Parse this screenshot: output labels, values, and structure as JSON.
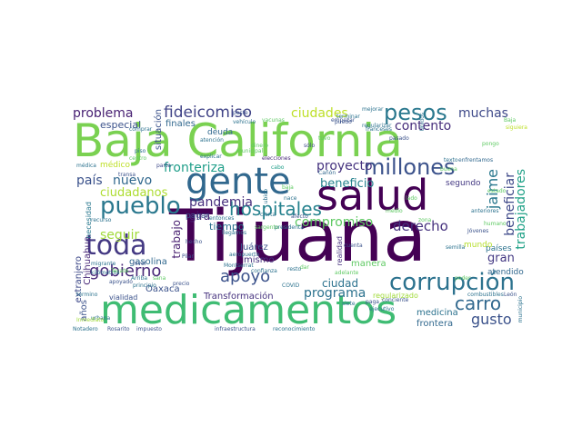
{
  "palette": {
    "dark_purple": "#440154",
    "indigo": "#3b528b",
    "teal": "#21908c",
    "green": "#5ec962",
    "lime": "#a0da39",
    "yellow": "#fde725"
  },
  "words": [
    {
      "text": "Tijuana",
      "color": "#440154"
    },
    {
      "text": "Baja California",
      "color": "#7ad151"
    },
    {
      "text": "medicamentos",
      "color": "#3fbc73"
    },
    {
      "text": "salud",
      "color": "#440154"
    },
    {
      "text": "gente",
      "color": "#31688e"
    },
    {
      "text": "corrupción",
      "color": "#2c728e"
    },
    {
      "text": "pesos",
      "color": "#2a788e"
    },
    {
      "text": "millones",
      "color": "#3b528b"
    },
    {
      "text": "toda",
      "color": "#443983"
    },
    {
      "text": "pueblo",
      "color": "#2a788e"
    },
    {
      "text": "hospitales",
      "color": "#26828e"
    },
    {
      "text": "fideicomiso",
      "color": "#414487"
    },
    {
      "text": "gobierno",
      "color": "#482878"
    },
    {
      "text": "apoyo",
      "color": "#3b528b"
    },
    {
      "text": "carro",
      "color": "#31688e"
    },
    {
      "text": "problema",
      "color": "#482173"
    },
    {
      "text": "ciudades",
      "color": "#bddf26"
    },
    {
      "text": "muchas",
      "color": "#3e4989"
    },
    {
      "text": "contento",
      "color": "#472d7b"
    },
    {
      "text": "fronteriza",
      "color": "#1f9e89"
    },
    {
      "text": "proyecto",
      "color": "#46337f"
    },
    {
      "text": "país",
      "color": "#3b528b"
    },
    {
      "text": "nuevo",
      "color": "#31688e"
    },
    {
      "text": "beneficio",
      "color": "#26828e"
    },
    {
      "text": "ciudadanos",
      "color": "#addc30"
    },
    {
      "text": "pandemia",
      "color": "#472f7d"
    },
    {
      "text": "derecho",
      "color": "#46327e"
    },
    {
      "text": "gira",
      "color": "#482475"
    },
    {
      "text": "compromiso",
      "color": "#5ec962"
    },
    {
      "text": "seguir",
      "color": "#a0da39"
    },
    {
      "text": "programa",
      "color": "#2c728e"
    },
    {
      "text": "gusto",
      "color": "#3b528b"
    },
    {
      "text": "jaime",
      "color": "#2a788e"
    },
    {
      "text": "beneficiar",
      "color": "#3e4989"
    },
    {
      "text": "trabajadores",
      "color": "#1fa187"
    },
    {
      "text": "gran",
      "color": "#443983"
    },
    {
      "text": "especial",
      "color": "#3b528b"
    },
    {
      "text": "finales",
      "color": "#31688e"
    },
    {
      "text": "situación",
      "color": "#3b528b"
    },
    {
      "text": "trabajo",
      "color": "#481f70"
    },
    {
      "text": "ciudad",
      "color": "#2c728e"
    },
    {
      "text": "mismo",
      "color": "#46327e"
    },
    {
      "text": "Juárez",
      "color": "#3b528b"
    },
    {
      "text": "tiempo",
      "color": "#2c728e"
    },
    {
      "text": "Transformación",
      "color": "#46327e"
    },
    {
      "text": "gasolina",
      "color": "#31688e"
    },
    {
      "text": "Oaxaca",
      "color": "#3b528b"
    },
    {
      "text": "Chihuahua",
      "color": "#482878"
    },
    {
      "text": "extranjero",
      "color": "#3e4989"
    },
    {
      "text": "necesidad",
      "color": "#2a788e"
    },
    {
      "text": "años",
      "color": "#3b528b"
    },
    {
      "text": "realidad",
      "color": "#46327e"
    },
    {
      "text": "países",
      "color": "#2c728e"
    },
    {
      "text": "atendido",
      "color": "#31688e"
    },
    {
      "text": "mundo",
      "color": "#b5de2b"
    },
    {
      "text": "medicina",
      "color": "#2c728e"
    },
    {
      "text": "frontera",
      "color": "#31688e"
    },
    {
      "text": "manera",
      "color": "#5ec962"
    },
    {
      "text": "deuda",
      "color": "#31688e"
    },
    {
      "text": "segundo",
      "color": "#443983"
    },
    {
      "text": "pagar",
      "color": "#3b528b"
    },
    {
      "text": "médico",
      "color": "#bddf26"
    },
    {
      "text": "regularizado",
      "color": "#a0da39"
    },
    {
      "text": "vialidad",
      "color": "#3b528b"
    },
    {
      "text": "médica",
      "color": "#2c728e"
    },
    {
      "text": "parte",
      "color": "#3e4989"
    },
    {
      "text": "piso",
      "color": "#2c728e"
    },
    {
      "text": "comprar",
      "color": "#2c728e"
    },
    {
      "text": "mejorar",
      "color": "#2c728e"
    },
    {
      "text": "atención",
      "color": "#2c728e"
    },
    {
      "text": "peste",
      "color": "#3b528b"
    },
    {
      "text": "vacunas",
      "color": "#5ec962"
    },
    {
      "text": "empezar",
      "color": "#3b528b"
    },
    {
      "text": "elecciones",
      "color": "#482878"
    },
    {
      "text": "cabo",
      "color": "#1f9e89"
    },
    {
      "text": "Cañón",
      "color": "#31688e"
    },
    {
      "text": "explicar",
      "color": "#2c728e"
    },
    {
      "text": "regularizar",
      "color": "#2c728e"
    },
    {
      "text": "sólo",
      "color": "#3e4989"
    },
    {
      "text": "pasado",
      "color": "#3b528b"
    },
    {
      "text": "siguiera",
      "color": "#bddf26"
    },
    {
      "text": "Baja",
      "color": "#5ec962"
    },
    {
      "text": "enfrentamos",
      "color": "#31688e"
    },
    {
      "text": "texto",
      "color": "#2c728e"
    },
    {
      "text": "terminar",
      "color": "#2c728e"
    },
    {
      "text": "franceses",
      "color": "#2c728e"
    },
    {
      "text": "migrante",
      "color": "#2c728e"
    },
    {
      "text": "presidenta",
      "color": "#2c728e"
    },
    {
      "text": "COVID",
      "color": "#2c728e"
    },
    {
      "text": "kilómetros",
      "color": "#2c728e"
    },
    {
      "text": "Arriba",
      "color": "#2c728e"
    },
    {
      "text": "recurso",
      "color": "#2c728e"
    },
    {
      "text": "transa",
      "color": "#3b528b"
    },
    {
      "text": "llegamos",
      "color": "#2c728e"
    },
    {
      "text": "Pilar",
      "color": "#3b528b"
    },
    {
      "text": "Montserrat",
      "color": "#2c728e"
    },
    {
      "text": "confianza",
      "color": "#2c728e"
    },
    {
      "text": "apoyado",
      "color": "#3b528b"
    },
    {
      "text": "principio",
      "color": "#2c728e"
    },
    {
      "text": "resto",
      "color": "#2c728e"
    },
    {
      "text": "cuenta",
      "color": "#3b528b"
    },
    {
      "text": "Jóvenes",
      "color": "#3b528b"
    },
    {
      "text": "Unidos",
      "color": "#2c728e"
    },
    {
      "text": "semilla",
      "color": "#2c728e"
    },
    {
      "text": "adelante",
      "color": "#5ec962"
    },
    {
      "text": "conciente",
      "color": "#3b528b"
    },
    {
      "text": "combustibles",
      "color": "#2c728e"
    },
    {
      "text": "León",
      "color": "#3b528b"
    },
    {
      "text": "ejecutivo",
      "color": "#2c728e"
    },
    {
      "text": "siete",
      "color": "#2c728e"
    },
    {
      "text": "paga",
      "color": "#3b528b"
    },
    {
      "text": "Rosarito",
      "color": "#3b528b"
    },
    {
      "text": "impuesto",
      "color": "#3b528b"
    },
    {
      "text": "infraestructura",
      "color": "#3b528b"
    },
    {
      "text": "reconocimiento",
      "color": "#2c728e"
    },
    {
      "text": "urbana",
      "color": "#2c728e"
    },
    {
      "text": "Notadero",
      "color": "#2c728e"
    },
    {
      "text": "municipio",
      "color": "#2c728e"
    },
    {
      "text": "aeropuerto",
      "color": "#2c728e"
    },
    {
      "text": "vehículo",
      "color": "#2c728e"
    },
    {
      "text": "nivel",
      "color": "#3b528b"
    },
    {
      "text": "precio",
      "color": "#3b528b"
    },
    {
      "text": "hecho",
      "color": "#3b528b"
    },
    {
      "text": "nace",
      "color": "#2c728e"
    },
    {
      "text": "afecto",
      "color": "#3b528b"
    },
    {
      "text": "puedo",
      "color": "#3b528b"
    },
    {
      "text": "entonces",
      "color": "#2c728e"
    },
    {
      "text": "anteriores",
      "color": "#2c728e"
    },
    {
      "text": "ubico",
      "color": "#2c728e"
    },
    {
      "text": "cierta",
      "color": "#2c728e"
    },
    {
      "text": "Inmediato",
      "color": "#a0da39"
    },
    {
      "text": "término",
      "color": "#2c728e"
    },
    {
      "text": "municipal",
      "color": "#5ec962"
    },
    {
      "text": "zona",
      "color": "#5ec962"
    },
    {
      "text": "buena",
      "color": "#5ec962"
    },
    {
      "text": "pongo",
      "color": "#5ec962"
    },
    {
      "text": "sana",
      "color": "#5ec962"
    },
    {
      "text": "sargento",
      "color": "#5ec962"
    },
    {
      "text": "lado",
      "color": "#5ec962"
    },
    {
      "text": "baja",
      "color": "#5ec962"
    },
    {
      "text": "dinero",
      "color": "#5ec962"
    },
    {
      "text": "tuvo",
      "color": "#5ec962"
    },
    {
      "text": "humano",
      "color": "#5ec962"
    },
    {
      "text": "dar",
      "color": "#5ec962"
    },
    {
      "text": "Tecate",
      "color": "#5ec962"
    },
    {
      "text": "estado",
      "color": "#5ec962"
    },
    {
      "text": "centro",
      "color": "#5ec962"
    },
    {
      "text": "medio",
      "color": "#5ec962"
    },
    {
      "text": "poder",
      "color": "#5ec962"
    },
    {
      "text": "seguro",
      "color": "#5ec962"
    }
  ]
}
